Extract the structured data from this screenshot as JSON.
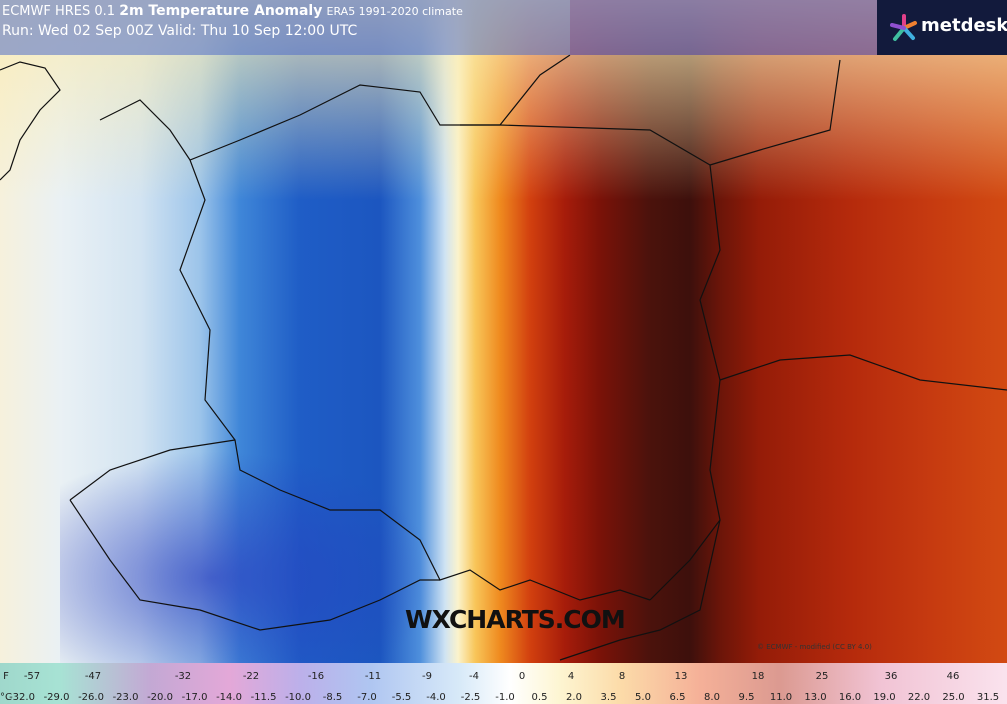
{
  "header": {
    "model": "ECMWF HRES 0.1",
    "title": "2m Temperature Anomaly",
    "climate": "ERA5 1991-2020 climate",
    "run": "Run: Wed 02 Sep 00Z Valid: Thu 10 Sep 12:00 UTC",
    "brand": "metdesk"
  },
  "watermark": "WXCHARTS.COM",
  "credit": "© ECMWF - modified (CC BY 4.0)",
  "colorbar": {
    "f_unit": "F",
    "f_labels": [
      "-57",
      "-47",
      "-32",
      "-22",
      "-16",
      "-11",
      "-9",
      "-4",
      "0",
      "4",
      "8",
      "13",
      "18",
      "25",
      "36",
      "46"
    ],
    "c_unit": "°C",
    "c_labels": [
      "-32.0",
      "-29.0",
      "-26.0",
      "-23.0",
      "-20.0",
      "-17.0",
      "-14.0",
      "-11.5",
      "-10.0",
      "-8.5",
      "-7.0",
      "-5.5",
      "-4.0",
      "-2.5",
      "-1.0",
      "0.5",
      "2.0",
      "3.5",
      "5.0",
      "6.5",
      "8.0",
      "9.5",
      "11.0",
      "13.0",
      "16.0",
      "19.0",
      "22.0",
      "25.0",
      "31.5"
    ]
  }
}
